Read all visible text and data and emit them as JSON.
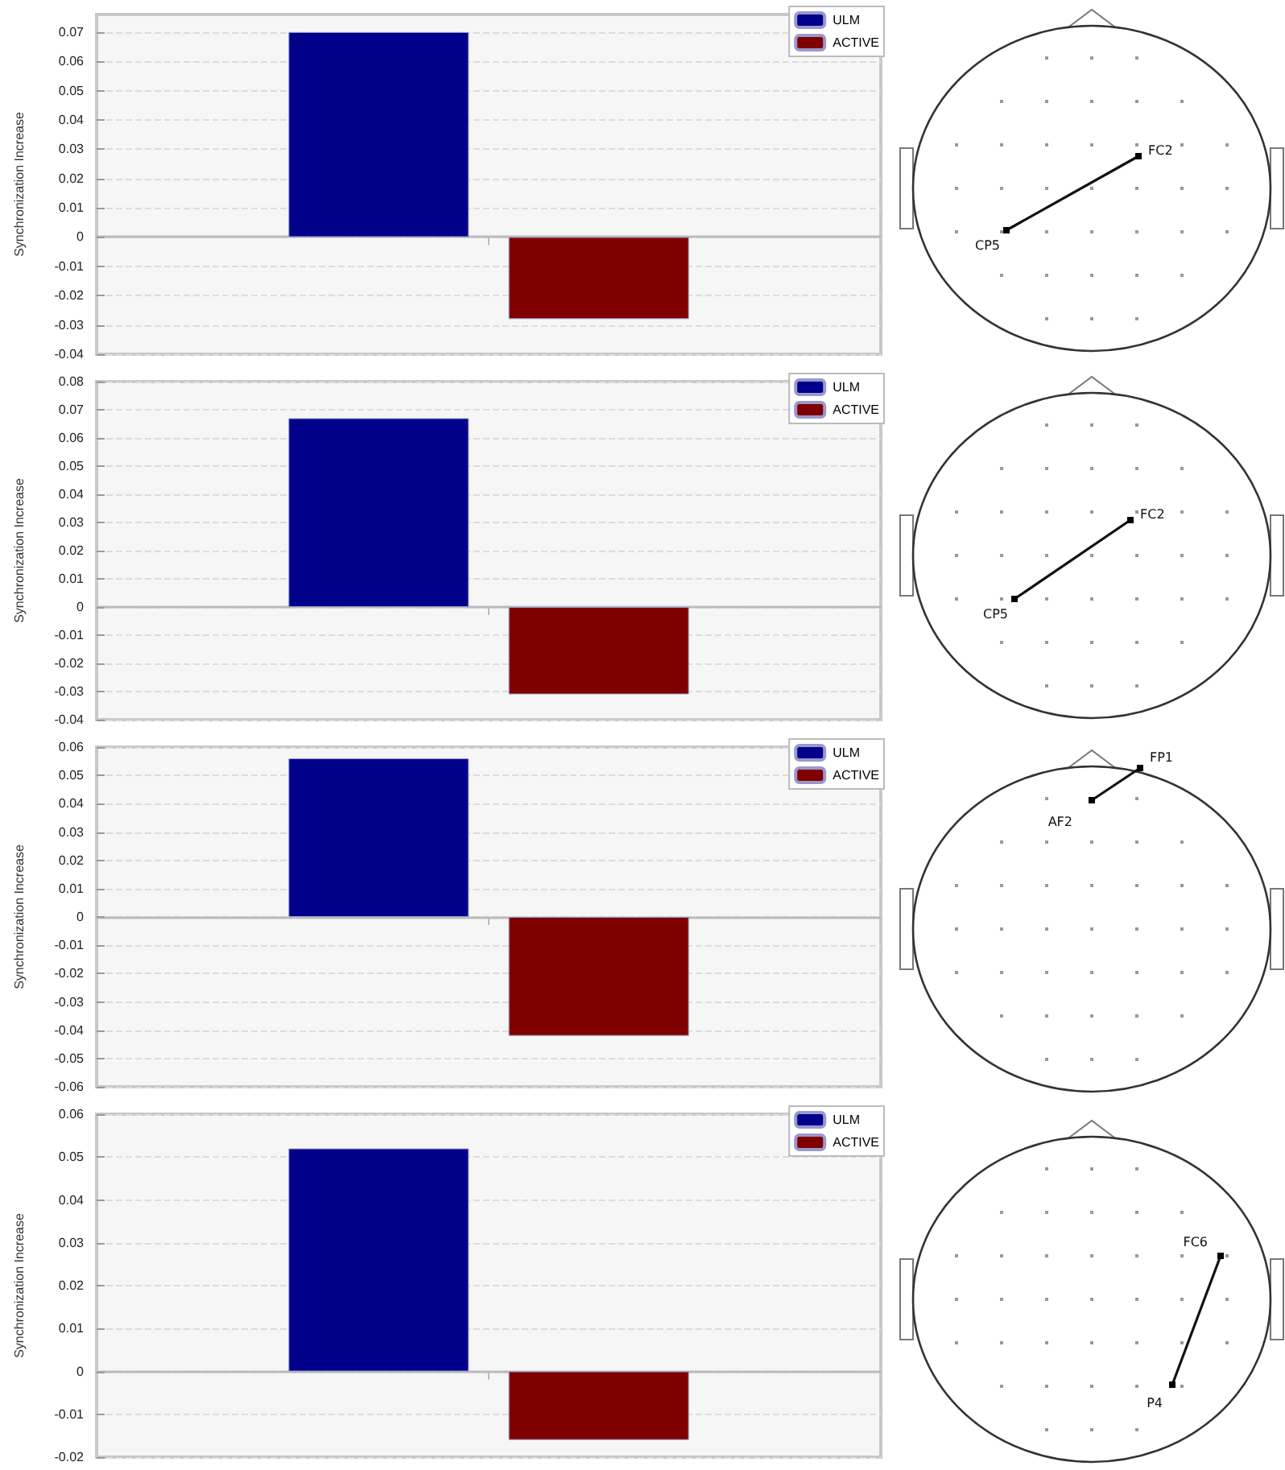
{
  "chart_data": [
    {
      "type": "bar",
      "ylabel": "Synchronization Increase",
      "categories": [
        null
      ],
      "series": [
        {
          "name": "ULM",
          "color": "#00008b",
          "values": [
            0.07
          ]
        },
        {
          "name": "ACTIVE",
          "color": "#800000",
          "values": [
            -0.028
          ]
        }
      ],
      "ylim": [
        -0.04,
        0.076
      ],
      "yticks": [
        -0.04,
        -0.03,
        -0.02,
        -0.01,
        0,
        0.01,
        0.02,
        0.03,
        0.04,
        0.05,
        0.06,
        0.07
      ],
      "grid": "y",
      "legend": "top right",
      "annotations": [
        "FC2",
        "CP5"
      ]
    },
    {
      "type": "bar",
      "ylabel": "Synchronization Increase",
      "categories": [
        null
      ],
      "series": [
        {
          "name": "ULM",
          "color": "#00008b",
          "values": [
            0.067
          ]
        },
        {
          "name": "ACTIVE",
          "color": "#800000",
          "values": [
            -0.031
          ]
        }
      ],
      "ylim": [
        -0.04,
        0.08
      ],
      "yticks": [
        -0.04,
        -0.03,
        -0.02,
        -0.01,
        0,
        0.01,
        0.02,
        0.03,
        0.04,
        0.05,
        0.06,
        0.07,
        0.08
      ],
      "grid": "y",
      "legend": "top right",
      "annotations": [
        "FC2",
        "CP5"
      ]
    },
    {
      "type": "bar",
      "ylabel": "Synchronization Increase",
      "categories": [
        null
      ],
      "series": [
        {
          "name": "ULM",
          "color": "#00008b",
          "values": [
            0.056
          ]
        },
        {
          "name": "ACTIVE",
          "color": "#800000",
          "values": [
            -0.042
          ]
        }
      ],
      "ylim": [
        -0.06,
        0.06
      ],
      "yticks": [
        -0.06,
        -0.05,
        -0.04,
        -0.03,
        -0.02,
        -0.01,
        0,
        0.01,
        0.02,
        0.03,
        0.04,
        0.05,
        0.06
      ],
      "grid": "y",
      "legend": "top right",
      "annotations": [
        "FP1",
        "AF2"
      ]
    },
    {
      "type": "bar",
      "ylabel": "Synchronization Increase",
      "categories": [
        null
      ],
      "series": [
        {
          "name": "ULM",
          "color": "#00008b",
          "values": [
            0.052
          ]
        },
        {
          "name": "ACTIVE",
          "color": "#800000",
          "values": [
            -0.016
          ]
        }
      ],
      "ylim": [
        -0.02,
        0.06
      ],
      "yticks": [
        -0.02,
        -0.01,
        0,
        0.01,
        0.02,
        0.03,
        0.04,
        0.05,
        0.06
      ],
      "grid": "y",
      "legend": "top right",
      "annotations": [
        "FC6",
        "P4"
      ]
    }
  ]
}
